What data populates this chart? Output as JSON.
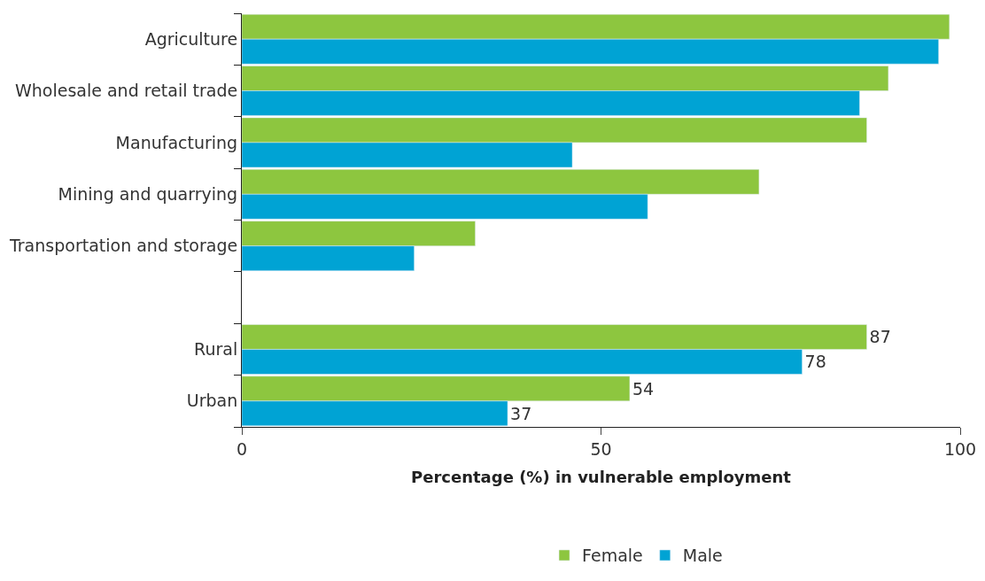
{
  "chart_data": {
    "type": "bar",
    "orientation": "horizontal",
    "xlabel": "Percentage (%) in vulnerable employment",
    "categories": [
      "Agriculture",
      "Wholesale and retail trade",
      "Manufacturing",
      "Mining and quarrying",
      "Transportation and storage",
      null,
      "Rural",
      "Urban"
    ],
    "series": [
      {
        "name": "Female",
        "color": "#8dc63f",
        "values": [
          98.5,
          90,
          87,
          72,
          32.5,
          null,
          87,
          54
        ],
        "value_labels": [
          null,
          null,
          null,
          null,
          null,
          null,
          "87",
          "54"
        ]
      },
      {
        "name": "Male",
        "color": "#00a3d4",
        "values": [
          97,
          86,
          46,
          56.5,
          24,
          null,
          78,
          37
        ],
        "value_labels": [
          null,
          null,
          null,
          null,
          null,
          null,
          "78",
          "37"
        ]
      }
    ],
    "xlim": [
      0,
      100
    ],
    "xticks": [
      0,
      50,
      100
    ],
    "legend": "bottom"
  }
}
